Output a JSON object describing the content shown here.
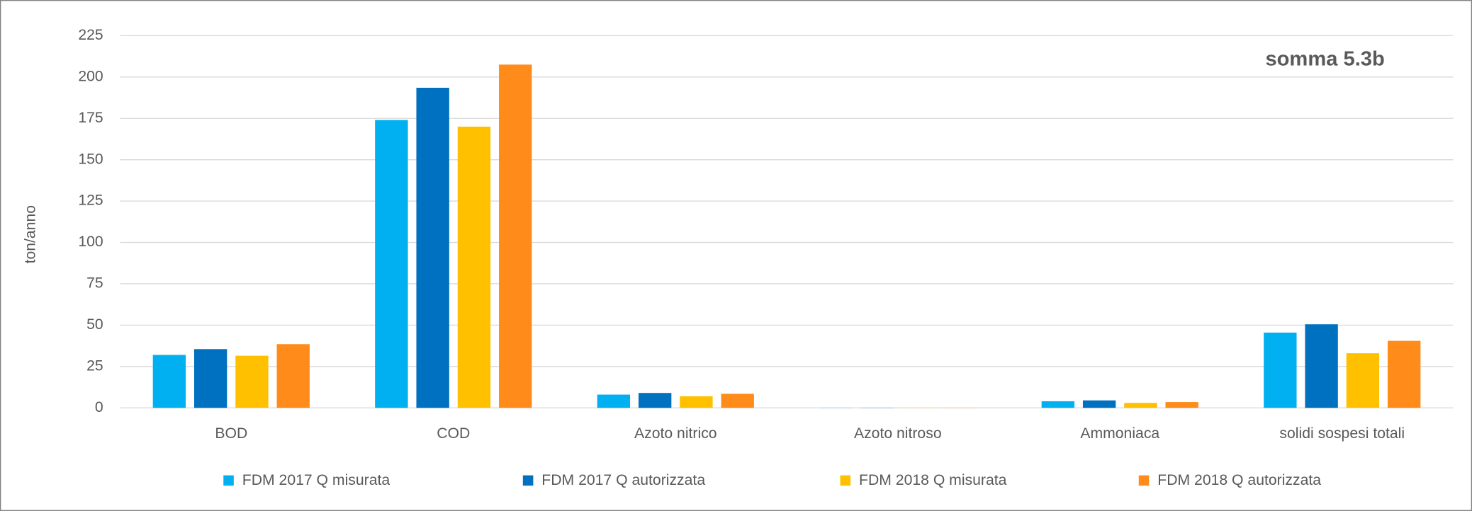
{
  "chart_data": {
    "type": "bar",
    "title": "somma 5.3b",
    "y_label": "ton/anno",
    "categories": [
      "BOD",
      "COD",
      "Azoto nitrico",
      "Azoto nitroso",
      "Ammoniaca",
      "solidi sospesi totali"
    ],
    "series": [
      {
        "name": "FDM 2017 Q misurata",
        "color": "#00b0f0",
        "values": [
          32,
          174,
          8,
          0.1,
          4,
          45.5
        ]
      },
      {
        "name": "FDM 2017 Q autorizzata",
        "color": "#0070c0",
        "values": [
          35.5,
          193.5,
          9,
          0.1,
          4.5,
          50.5
        ]
      },
      {
        "name": "FDM 2018 Q misurata",
        "color": "#ffc000",
        "values": [
          31.5,
          170,
          7,
          0.1,
          3,
          33
        ]
      },
      {
        "name": "FDM 2018 Q autorizzata",
        "color": "#ff8c1a",
        "values": [
          38.5,
          207.5,
          8.5,
          0.1,
          3.5,
          40.5
        ]
      }
    ],
    "ylim": [
      0,
      225
    ],
    "yticks": [
      0,
      25,
      50,
      75,
      100,
      125,
      150,
      175,
      200,
      225
    ],
    "grid": true,
    "legend": "bottom"
  }
}
